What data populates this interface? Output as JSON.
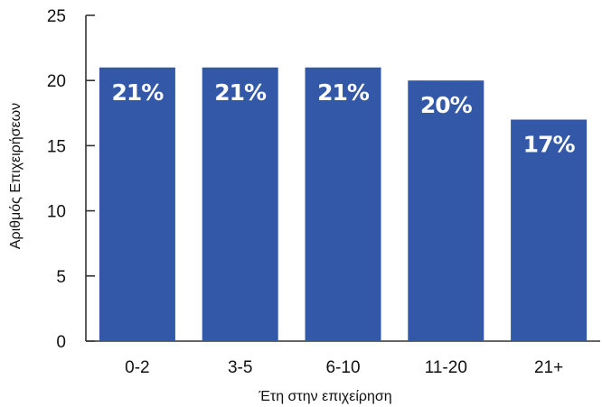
{
  "chart_data": {
    "type": "bar",
    "categories": [
      "0-2",
      "3-5",
      "6-10",
      "11-20",
      "21+"
    ],
    "values": [
      21,
      21,
      21,
      20,
      17
    ],
    "data_labels": [
      "21%",
      "21%",
      "21%",
      "20%",
      "17%"
    ],
    "xlabel": "Έτη στην επιχείρηση",
    "ylabel": "Αριθμός Επιχειρήσεων",
    "ylim": [
      0,
      25
    ],
    "yticks": [
      0,
      5,
      10,
      15,
      20,
      25
    ],
    "grid": false,
    "legend": "none",
    "bar_color": "#3358a7"
  }
}
